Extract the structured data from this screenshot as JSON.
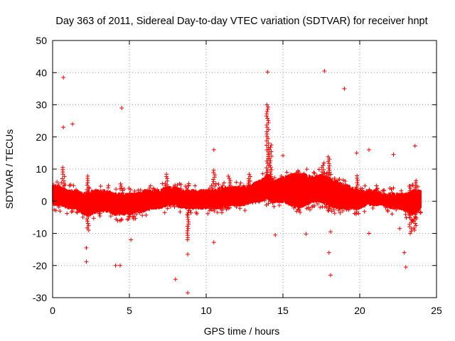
{
  "chart_data": {
    "type": "scatter",
    "title": "Day 363 of 2011, Sidereal Day-to-day VTEC variation (SDTVAR) for receiver hnpt",
    "xlabel": "GPS time / hours",
    "ylabel": "SDTVAR / TECUs",
    "xlim": [
      0,
      25
    ],
    "ylim": [
      -30,
      50
    ],
    "xticks": [
      0,
      5,
      10,
      15,
      20,
      25
    ],
    "yticks": [
      -30,
      -20,
      -10,
      0,
      10,
      20,
      30,
      40,
      50
    ],
    "grid": true,
    "marker": "+",
    "color": "#ff0000",
    "series": [
      {
        "name": "SDTVAR",
        "band": [
          {
            "x": 0.0,
            "lo": -1,
            "hi": 5
          },
          {
            "x": 0.5,
            "lo": -1,
            "hi": 4
          },
          {
            "x": 1.0,
            "lo": -2,
            "hi": 3
          },
          {
            "x": 1.5,
            "lo": -2,
            "hi": 3
          },
          {
            "x": 2.0,
            "lo": -4,
            "hi": 2
          },
          {
            "x": 2.5,
            "lo": -4,
            "hi": 3
          },
          {
            "x": 3.0,
            "lo": -3,
            "hi": 3
          },
          {
            "x": 3.5,
            "lo": -3,
            "hi": 3
          },
          {
            "x": 4.0,
            "lo": -4,
            "hi": 2
          },
          {
            "x": 4.5,
            "lo": -4,
            "hi": 2
          },
          {
            "x": 5.0,
            "lo": -4,
            "hi": 2
          },
          {
            "x": 5.5,
            "lo": -3,
            "hi": 2
          },
          {
            "x": 6.0,
            "lo": -3,
            "hi": 3
          },
          {
            "x": 6.5,
            "lo": -2,
            "hi": 3
          },
          {
            "x": 7.0,
            "lo": -2,
            "hi": 3
          },
          {
            "x": 7.5,
            "lo": -1,
            "hi": 4
          },
          {
            "x": 8.0,
            "lo": -1,
            "hi": 4
          },
          {
            "x": 8.5,
            "lo": -2,
            "hi": 3
          },
          {
            "x": 9.0,
            "lo": -2,
            "hi": 3
          },
          {
            "x": 9.5,
            "lo": -2,
            "hi": 3
          },
          {
            "x": 10.0,
            "lo": -2,
            "hi": 3
          },
          {
            "x": 10.5,
            "lo": -2,
            "hi": 3
          },
          {
            "x": 11.0,
            "lo": -2,
            "hi": 4
          },
          {
            "x": 11.5,
            "lo": -1,
            "hi": 4
          },
          {
            "x": 12.0,
            "lo": -1,
            "hi": 4
          },
          {
            "x": 12.5,
            "lo": -1,
            "hi": 4
          },
          {
            "x": 13.0,
            "lo": 0,
            "hi": 5
          },
          {
            "x": 13.5,
            "lo": 0,
            "hi": 6
          },
          {
            "x": 14.0,
            "lo": 1,
            "hi": 8
          },
          {
            "x": 14.5,
            "lo": 0,
            "hi": 6
          },
          {
            "x": 15.0,
            "lo": 0,
            "hi": 7
          },
          {
            "x": 15.5,
            "lo": -1,
            "hi": 8
          },
          {
            "x": 16.0,
            "lo": -2,
            "hi": 8
          },
          {
            "x": 16.5,
            "lo": -1,
            "hi": 8
          },
          {
            "x": 17.0,
            "lo": 0,
            "hi": 7
          },
          {
            "x": 17.5,
            "lo": 0,
            "hi": 8
          },
          {
            "x": 18.0,
            "lo": -1,
            "hi": 7
          },
          {
            "x": 18.5,
            "lo": -2,
            "hi": 6
          },
          {
            "x": 19.0,
            "lo": -2,
            "hi": 5
          },
          {
            "x": 19.5,
            "lo": -2,
            "hi": 4
          },
          {
            "x": 20.0,
            "lo": -2,
            "hi": 3
          },
          {
            "x": 20.5,
            "lo": -1,
            "hi": 3
          },
          {
            "x": 21.0,
            "lo": -1,
            "hi": 3
          },
          {
            "x": 21.5,
            "lo": -1,
            "hi": 2
          },
          {
            "x": 22.0,
            "lo": -2,
            "hi": 2
          },
          {
            "x": 22.5,
            "lo": -2,
            "hi": 2
          },
          {
            "x": 23.0,
            "lo": -3,
            "hi": 2
          },
          {
            "x": 23.5,
            "lo": -4,
            "hi": 3
          },
          {
            "x": 24.0,
            "lo": -2,
            "hi": 3
          }
        ],
        "spikes": [
          {
            "x": 0.7,
            "lo": 0,
            "hi": 11
          },
          {
            "x": 2.3,
            "lo": -9,
            "hi": 8
          },
          {
            "x": 4.5,
            "lo": -3,
            "hi": 6
          },
          {
            "x": 7.4,
            "lo": 0,
            "hi": 9
          },
          {
            "x": 8.8,
            "lo": -12,
            "hi": 6
          },
          {
            "x": 10.5,
            "lo": -3,
            "hi": 10
          },
          {
            "x": 11.5,
            "lo": -2,
            "hi": 8
          },
          {
            "x": 12.8,
            "lo": 0,
            "hi": 9
          },
          {
            "x": 14.0,
            "lo": 2,
            "hi": 30
          },
          {
            "x": 14.2,
            "lo": 0,
            "hi": 18
          },
          {
            "x": 17.6,
            "lo": 0,
            "hi": 12
          },
          {
            "x": 18.0,
            "lo": -3,
            "hi": 14
          },
          {
            "x": 19.8,
            "lo": -4,
            "hi": 8
          },
          {
            "x": 23.3,
            "lo": -10,
            "hi": 5
          },
          {
            "x": 23.6,
            "lo": -9,
            "hi": 7
          }
        ],
        "outliers": [
          {
            "x": 0.7,
            "y": 38.5
          },
          {
            "x": 0.7,
            "y": 23
          },
          {
            "x": 1.3,
            "y": 24
          },
          {
            "x": 4.5,
            "y": 29
          },
          {
            "x": 2.2,
            "y": -14.5
          },
          {
            "x": 2.2,
            "y": -18.8
          },
          {
            "x": 4.1,
            "y": -20
          },
          {
            "x": 4.4,
            "y": -20
          },
          {
            "x": 5.1,
            "y": -12
          },
          {
            "x": 8.0,
            "y": -24.3
          },
          {
            "x": 8.8,
            "y": -28.5
          },
          {
            "x": 8.8,
            "y": -16.5
          },
          {
            "x": 10.5,
            "y": 16
          },
          {
            "x": 10.5,
            "y": -12.8
          },
          {
            "x": 14.0,
            "y": 40.2
          },
          {
            "x": 14.5,
            "y": -10.5
          },
          {
            "x": 15.0,
            "y": 14.2
          },
          {
            "x": 16.5,
            "y": -10.2
          },
          {
            "x": 17.7,
            "y": 40.5
          },
          {
            "x": 18.0,
            "y": -16
          },
          {
            "x": 18.1,
            "y": -23
          },
          {
            "x": 18.1,
            "y": -9.5
          },
          {
            "x": 19.0,
            "y": 35
          },
          {
            "x": 19.8,
            "y": 15
          },
          {
            "x": 20.6,
            "y": 16
          },
          {
            "x": 20.6,
            "y": -10
          },
          {
            "x": 22.2,
            "y": 14.5
          },
          {
            "x": 22.9,
            "y": -16
          },
          {
            "x": 23.0,
            "y": -20.5
          },
          {
            "x": 23.6,
            "y": 17.2
          },
          {
            "x": 22.6,
            "y": -8.5
          }
        ]
      }
    ]
  }
}
